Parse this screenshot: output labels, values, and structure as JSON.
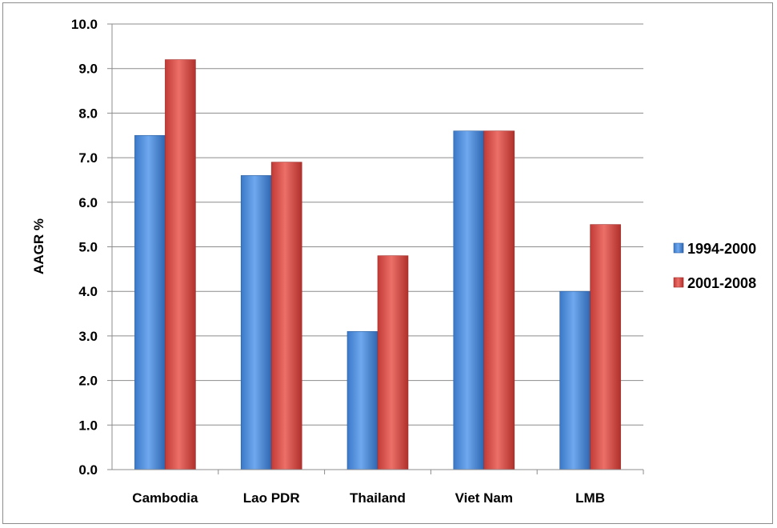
{
  "chart_data": {
    "type": "bar",
    "title": "",
    "xlabel": "",
    "ylabel": "AAGR %",
    "ylim": [
      0,
      10
    ],
    "ytick_step": 1,
    "ytick_format_decimals": 1,
    "grid": true,
    "legend_position": "right",
    "categories": [
      "Cambodia",
      "Lao PDR",
      "Thailand",
      "Viet Nam",
      "LMB"
    ],
    "series": [
      {
        "name": "1994-2000",
        "color": "#4f8fdc",
        "values": [
          7.5,
          6.6,
          3.1,
          7.6,
          4.0
        ]
      },
      {
        "name": "2001-2008",
        "color": "#d9534f",
        "values": [
          9.2,
          6.9,
          4.8,
          7.6,
          5.5
        ]
      }
    ]
  }
}
